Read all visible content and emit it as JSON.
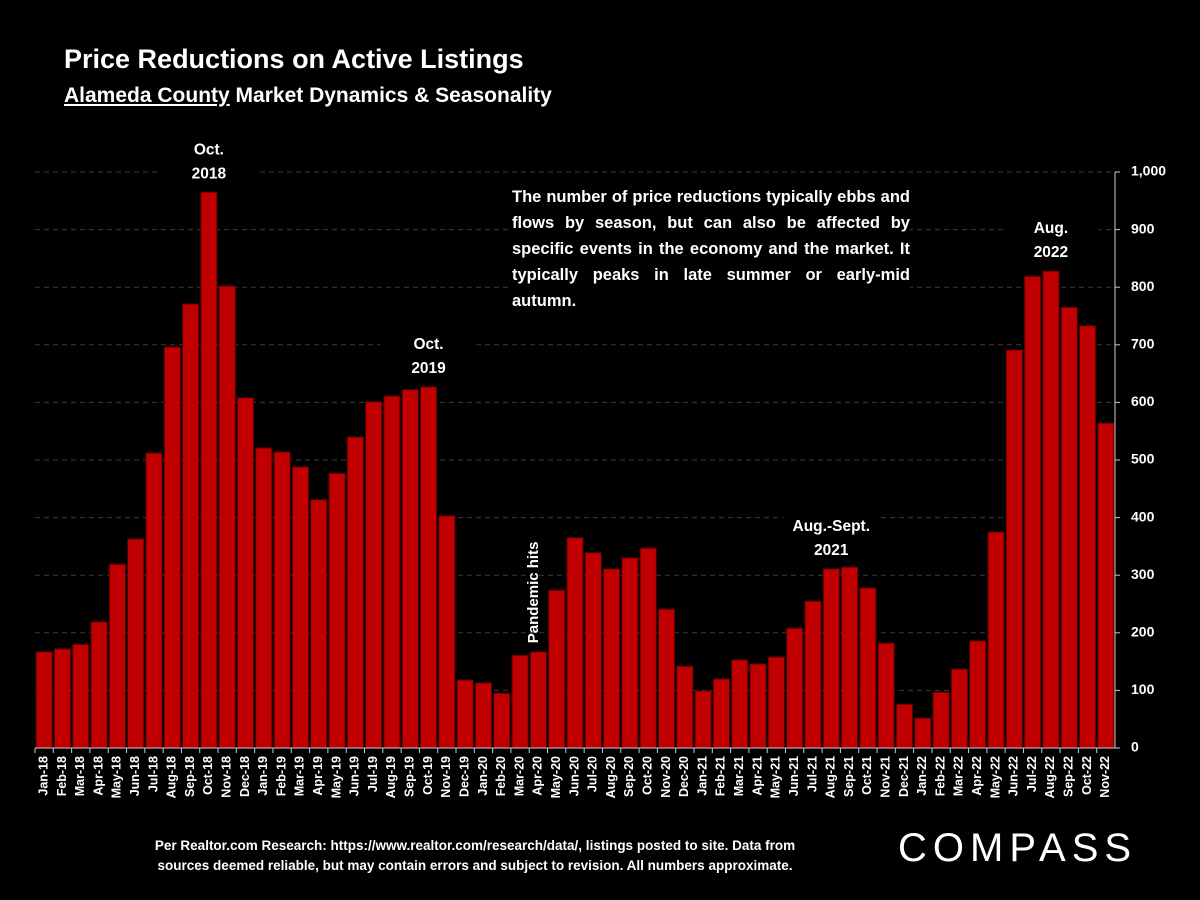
{
  "chart_data": {
    "type": "bar",
    "title": "Price Reductions on Active Listings",
    "subtitle_underlined": "Alameda County",
    "subtitle": "Market Dynamics & Seasonality",
    "note": "The number of price reductions typically ebbs and flows by season, but can also be affected by specific events in the economy and the market. It typically peaks in late summer or early-mid autumn.",
    "annotations": [
      {
        "lines": [
          "Oct.",
          "2018"
        ],
        "category": "Oct-18"
      },
      {
        "lines": [
          "Oct.",
          "2019"
        ],
        "category": "Oct-19"
      },
      {
        "lines": [
          "Pandemic hits"
        ],
        "category": "Mar-20",
        "rotated": true
      },
      {
        "lines": [
          "Aug.-Sept.",
          "2021"
        ],
        "category": "Aug-21"
      },
      {
        "lines": [
          "Aug.",
          "2022"
        ],
        "category": "Aug-22"
      }
    ],
    "footer": [
      "Per Realtor.com Research:  https://www.realtor.com/research/data/, listings posted to site. Data from",
      "sources deemed reliable, but may contain errors and subject to revision. All numbers approximate."
    ],
    "logo": "COMPASS",
    "categories": [
      "Jan-18",
      "Feb-18",
      "Mar-18",
      "Apr-18",
      "May-18",
      "Jun-18",
      "Jul-18",
      "Aug-18",
      "Sep-18",
      "Oct-18",
      "Nov-18",
      "Dec-18",
      "Jan-19",
      "Feb-19",
      "Mar-19",
      "Apr-19",
      "May-19",
      "Jun-19",
      "Jul-19",
      "Aug-19",
      "Sep-19",
      "Oct-19",
      "Nov-19",
      "Dec-19",
      "Jan-20",
      "Feb-20",
      "Mar-20",
      "Apr-20",
      "May-20",
      "Jun-20",
      "Jul-20",
      "Aug-20",
      "Sep-20",
      "Oct-20",
      "Nov-20",
      "Dec-20",
      "Jan-21",
      "Feb-21",
      "Mar-21",
      "Apr-21",
      "May-21",
      "Jun-21",
      "Jul-21",
      "Aug-21",
      "Sep-21",
      "Oct-21",
      "Nov-21",
      "Dec-21",
      "Jan-22",
      "Feb-22",
      "Mar-22",
      "Apr-22",
      "May-22",
      "Jun-22",
      "Jul-22",
      "Aug-22",
      "Sep-22",
      "Oct-22",
      "Nov-22"
    ],
    "values": [
      167,
      172,
      180,
      219,
      319,
      363,
      512,
      696,
      771,
      965,
      802,
      608,
      521,
      514,
      488,
      431,
      477,
      540,
      601,
      611,
      622,
      627,
      403,
      118,
      113,
      95,
      161,
      167,
      274,
      365,
      339,
      311,
      330,
      347,
      241,
      142,
      99,
      120,
      153,
      146,
      158,
      208,
      255,
      311,
      314,
      278,
      182,
      76,
      52,
      97,
      137,
      186,
      375,
      691,
      819,
      828,
      765,
      733,
      564
    ],
    "color": "#c00000",
    "ylim": [
      0,
      1000
    ],
    "yticks": [
      0,
      100,
      200,
      300,
      400,
      500,
      600,
      700,
      800,
      900,
      {
        "value": 1000,
        "label": "1,000"
      }
    ],
    "y_axis_side": "right",
    "grid": true
  }
}
